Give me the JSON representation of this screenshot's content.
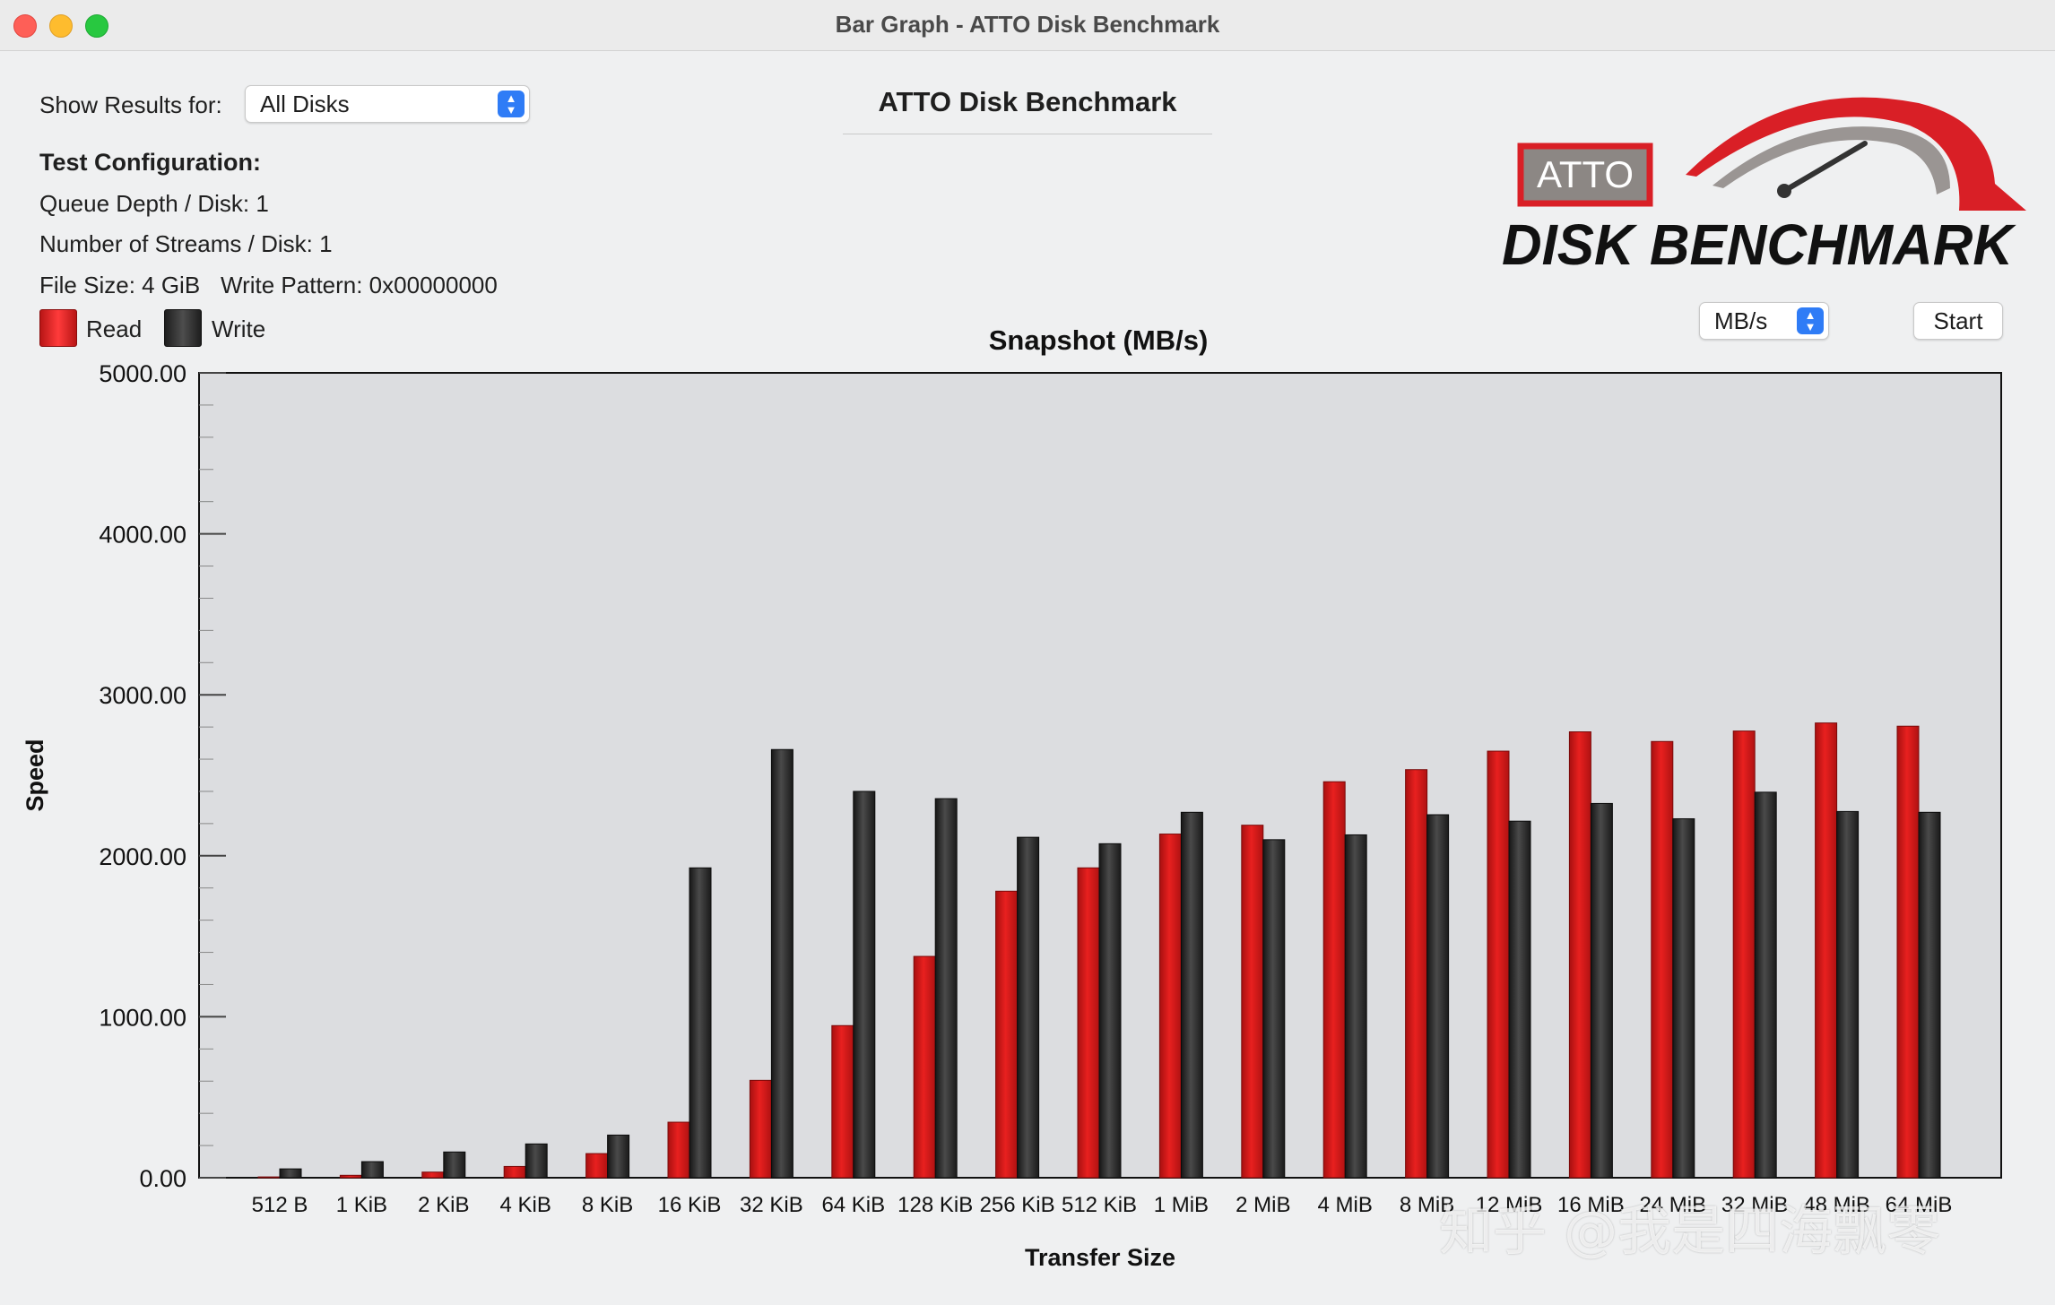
{
  "window": {
    "title": "Bar Graph - ATTO Disk Benchmark"
  },
  "controls": {
    "show_results_label": "Show Results for:",
    "show_results_value": "All Disks",
    "units_value": "MB/s",
    "start_label": "Start"
  },
  "heading": "ATTO Disk Benchmark",
  "config": {
    "title": "Test Configuration:",
    "queue_depth": "Queue Depth / Disk: 1",
    "streams": "Number of Streams / Disk: 1",
    "file_size": "File Size: 4 GiB",
    "write_pattern": "Write Pattern: 0x00000000"
  },
  "legend": {
    "read": "Read",
    "write": "Write"
  },
  "logo": {
    "badge": "ATTO",
    "wordmark": "DISK BENCHMARK"
  },
  "watermark": "知乎 @我是四海飘零",
  "colors": {
    "read": "#e8201f",
    "write": "#2b2b2b",
    "plot_bg": "#dcdde0"
  },
  "chart_data": {
    "type": "bar",
    "title": "Snapshot (MB/s)",
    "xlabel": "Transfer Size",
    "ylabel": "Speed",
    "ylim": [
      0,
      5000
    ],
    "yticks": [
      "0.00",
      "1000.00",
      "2000.00",
      "3000.00",
      "4000.00",
      "5000.00"
    ],
    "grid": false,
    "categories": [
      "512 B",
      "1 KiB",
      "2 KiB",
      "4 KiB",
      "8 KiB",
      "16 KiB",
      "32 KiB",
      "64 KiB",
      "128 KiB",
      "256 KiB",
      "512 KiB",
      "1 MiB",
      "2 MiB",
      "4 MiB",
      "8 MiB",
      "12 MiB",
      "16 MiB",
      "24 MiB",
      "32 MiB",
      "48 MiB",
      "64 MiB"
    ],
    "series": [
      {
        "name": "Read",
        "values": [
          5,
          15,
          35,
          70,
          150,
          345,
          605,
          945,
          1375,
          1780,
          1925,
          2135,
          2190,
          2460,
          2535,
          2650,
          2770,
          2710,
          2775,
          2825,
          2805
        ]
      },
      {
        "name": "Write",
        "values": [
          55,
          100,
          160,
          210,
          265,
          1925,
          2660,
          2400,
          2355,
          2115,
          2075,
          2270,
          2100,
          2130,
          2255,
          2215,
          2325,
          2230,
          2395,
          2275,
          2270
        ]
      }
    ]
  }
}
